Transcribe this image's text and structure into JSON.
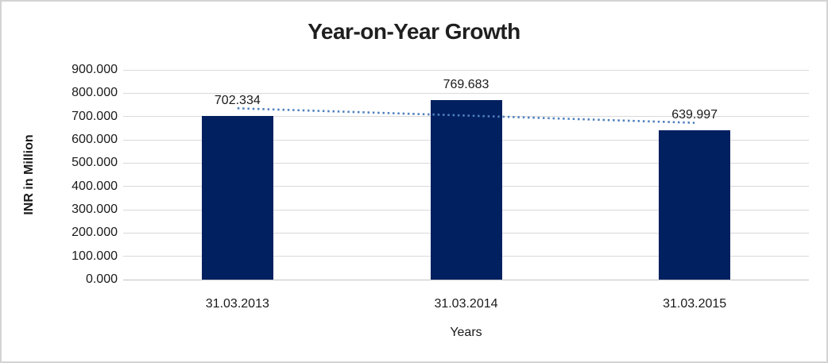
{
  "chart_data": {
    "type": "bar",
    "title": "Year-on-Year Growth",
    "xlabel": "Years",
    "ylabel": "INR in Million",
    "categories": [
      "31.03.2013",
      "31.03.2014",
      "31.03.2015"
    ],
    "values": [
      702.334,
      769.683,
      639.997
    ],
    "value_labels": [
      "702.334",
      "769.683",
      "639.997"
    ],
    "ylim": [
      0,
      900
    ],
    "yticks": [
      "0.000",
      "100.000",
      "200.000",
      "300.000",
      "400.000",
      "500.000",
      "600.000",
      "700.000",
      "800.000",
      "900.000"
    ],
    "grid": true,
    "legend_position": "none",
    "trendline": {
      "type": "linear",
      "style": "dotted",
      "color": "#4F81BD"
    },
    "colors": {
      "bar": "#002060",
      "gridline": "#D9D9D9",
      "axis_line": "#C3C3C3",
      "text": "#1A1A1A",
      "frame_border": "#D3D3D3",
      "background": "#FFFFFF"
    }
  }
}
